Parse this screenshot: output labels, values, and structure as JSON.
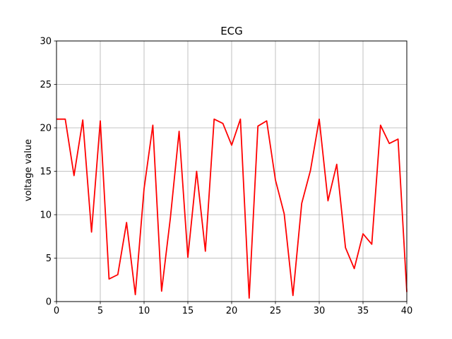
{
  "chart_data": {
    "type": "line",
    "title": "ECG",
    "xlabel": "",
    "ylabel": "voltage value",
    "xlim": [
      0,
      40
    ],
    "ylim": [
      0,
      30
    ],
    "xticks": [
      0,
      5,
      10,
      15,
      20,
      25,
      30,
      35,
      40
    ],
    "yticks": [
      0,
      5,
      10,
      15,
      20,
      25,
      30
    ],
    "grid": true,
    "series": [
      {
        "color": "#ff0000",
        "x": [
          0,
          1,
          2,
          3,
          4,
          5,
          6,
          7,
          8,
          9,
          10,
          11,
          12,
          13,
          14,
          15,
          16,
          17,
          18,
          19,
          20,
          21,
          22,
          23,
          24,
          25,
          26,
          27,
          28,
          29,
          30,
          31,
          32,
          33,
          34,
          35,
          36,
          37,
          38,
          39,
          40
        ],
        "y": [
          21.0,
          21.0,
          14.5,
          20.9,
          8.0,
          20.8,
          2.6,
          3.1,
          9.1,
          0.8,
          13.0,
          20.3,
          1.2,
          9.6,
          19.6,
          5.1,
          15.0,
          5.8,
          21.0,
          20.5,
          18.0,
          21.0,
          0.4,
          20.2,
          20.8,
          14.0,
          10.1,
          0.7,
          11.3,
          15.1,
          21.0,
          11.6,
          15.8,
          6.2,
          3.8,
          7.8,
          6.6,
          20.3,
          18.2,
          18.7,
          1.1
        ]
      }
    ]
  }
}
